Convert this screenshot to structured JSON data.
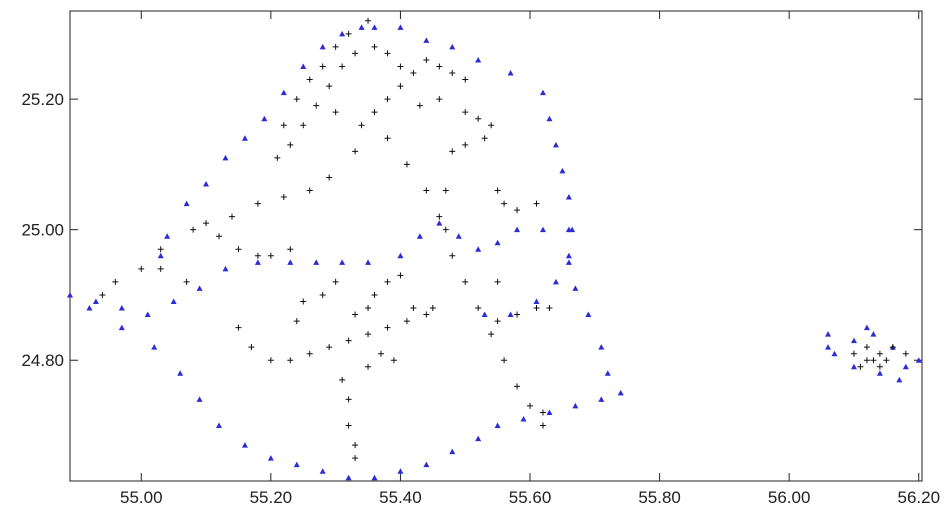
{
  "chart_data": {
    "type": "scatter",
    "title": "",
    "xlabel": "",
    "ylabel": "",
    "xlim": [
      54.89,
      56.205
    ],
    "ylim": [
      24.615,
      25.335
    ],
    "x_ticks": [
      55.0,
      55.2,
      55.4,
      55.6,
      55.8,
      56.0,
      56.2
    ],
    "x_tick_labels": [
      "55.00",
      "55.20",
      "55.40",
      "55.60",
      "55.80",
      "56.00",
      "56.20"
    ],
    "y_ticks": [
      24.8,
      25.0,
      25.2
    ],
    "y_tick_labels": [
      "24.80",
      "25.00",
      "25.20"
    ],
    "grid": false,
    "legend": "none",
    "series": [
      {
        "marker": "triangle",
        "color": "#2b2bd8",
        "description": "boundary points",
        "points": [
          [
            54.89,
            24.9
          ],
          [
            54.93,
            24.89
          ],
          [
            54.97,
            24.88
          ],
          [
            55.01,
            24.87
          ],
          [
            55.05,
            24.89
          ],
          [
            55.09,
            24.91
          ],
          [
            55.13,
            24.94
          ],
          [
            55.18,
            24.95
          ],
          [
            55.23,
            24.95
          ],
          [
            55.27,
            24.95
          ],
          [
            55.31,
            24.95
          ],
          [
            55.35,
            24.95
          ],
          [
            55.4,
            24.96
          ],
          [
            55.43,
            24.99
          ],
          [
            55.46,
            25.01
          ],
          [
            55.49,
            24.99
          ],
          [
            55.52,
            24.97
          ],
          [
            55.55,
            24.98
          ],
          [
            55.58,
            25.0
          ],
          [
            55.62,
            25.0
          ],
          [
            55.66,
            25.0
          ],
          [
            55.03,
            24.96
          ],
          [
            55.04,
            24.99
          ],
          [
            55.07,
            25.04
          ],
          [
            55.1,
            25.07
          ],
          [
            55.13,
            25.11
          ],
          [
            55.16,
            25.14
          ],
          [
            55.19,
            25.17
          ],
          [
            55.22,
            25.21
          ],
          [
            55.25,
            25.25
          ],
          [
            55.28,
            25.28
          ],
          [
            55.31,
            25.3
          ],
          [
            55.34,
            25.31
          ],
          [
            55.36,
            25.31
          ],
          [
            55.4,
            25.31
          ],
          [
            55.44,
            25.29
          ],
          [
            55.48,
            25.28
          ],
          [
            55.52,
            25.26
          ],
          [
            55.57,
            25.24
          ],
          [
            55.62,
            25.21
          ],
          [
            55.63,
            25.17
          ],
          [
            55.64,
            25.13
          ],
          [
            55.65,
            25.09
          ],
          [
            55.66,
            25.05
          ],
          [
            55.665,
            25.0
          ],
          [
            55.66,
            24.96
          ],
          [
            55.64,
            24.92
          ],
          [
            55.61,
            24.89
          ],
          [
            55.57,
            24.87
          ],
          [
            55.53,
            24.87
          ],
          [
            55.66,
            24.95
          ],
          [
            55.67,
            24.91
          ],
          [
            55.69,
            24.87
          ],
          [
            55.71,
            24.82
          ],
          [
            55.72,
            24.78
          ],
          [
            55.74,
            24.75
          ],
          [
            55.71,
            24.74
          ],
          [
            55.67,
            24.73
          ],
          [
            55.63,
            24.72
          ],
          [
            55.59,
            24.71
          ],
          [
            55.55,
            24.7
          ],
          [
            55.52,
            24.68
          ],
          [
            55.48,
            24.66
          ],
          [
            55.44,
            24.64
          ],
          [
            55.4,
            24.63
          ],
          [
            55.36,
            24.62
          ],
          [
            55.32,
            24.62
          ],
          [
            55.28,
            24.63
          ],
          [
            55.24,
            24.64
          ],
          [
            55.2,
            24.65
          ],
          [
            55.16,
            24.67
          ],
          [
            55.12,
            24.7
          ],
          [
            55.09,
            24.74
          ],
          [
            55.06,
            24.78
          ],
          [
            55.02,
            24.82
          ],
          [
            54.97,
            24.85
          ],
          [
            54.92,
            24.88
          ],
          [
            56.06,
            24.84
          ],
          [
            56.1,
            24.83
          ],
          [
            56.13,
            24.84
          ],
          [
            56.16,
            24.82
          ],
          [
            56.2,
            24.8
          ],
          [
            56.18,
            24.79
          ],
          [
            56.14,
            24.78
          ],
          [
            56.1,
            24.79
          ],
          [
            56.07,
            24.81
          ],
          [
            56.06,
            24.82
          ],
          [
            56.12,
            24.85
          ],
          [
            56.17,
            24.77
          ]
        ]
      },
      {
        "marker": "plus",
        "color": "#111111",
        "description": "interior points",
        "points": [
          [
            55.3,
            25.28
          ],
          [
            55.32,
            25.3
          ],
          [
            55.35,
            25.32
          ],
          [
            55.33,
            25.27
          ],
          [
            55.31,
            25.25
          ],
          [
            55.29,
            25.22
          ],
          [
            55.27,
            25.19
          ],
          [
            55.25,
            25.16
          ],
          [
            55.23,
            25.13
          ],
          [
            55.21,
            25.11
          ],
          [
            55.22,
            25.16
          ],
          [
            55.24,
            25.2
          ],
          [
            55.26,
            25.23
          ],
          [
            55.28,
            25.25
          ],
          [
            55.36,
            25.28
          ],
          [
            55.38,
            25.27
          ],
          [
            55.4,
            25.25
          ],
          [
            55.42,
            25.24
          ],
          [
            55.44,
            25.26
          ],
          [
            55.46,
            25.25
          ],
          [
            55.48,
            25.24
          ],
          [
            55.5,
            25.23
          ],
          [
            55.4,
            25.22
          ],
          [
            55.38,
            25.2
          ],
          [
            55.43,
            25.19
          ],
          [
            55.46,
            25.2
          ],
          [
            55.5,
            25.18
          ],
          [
            55.52,
            25.17
          ],
          [
            55.54,
            25.16
          ],
          [
            55.53,
            25.14
          ],
          [
            55.36,
            25.18
          ],
          [
            55.38,
            25.14
          ],
          [
            55.41,
            25.1
          ],
          [
            55.44,
            25.06
          ],
          [
            55.46,
            25.02
          ],
          [
            55.48,
            24.96
          ],
          [
            55.5,
            24.92
          ],
          [
            55.52,
            24.88
          ],
          [
            55.54,
            24.84
          ],
          [
            55.56,
            24.8
          ],
          [
            55.58,
            24.76
          ],
          [
            55.6,
            24.73
          ],
          [
            55.62,
            24.72
          ],
          [
            55.3,
            25.18
          ],
          [
            55.34,
            25.16
          ],
          [
            55.33,
            25.12
          ],
          [
            55.29,
            25.08
          ],
          [
            55.26,
            25.06
          ],
          [
            55.22,
            25.05
          ],
          [
            55.18,
            25.04
          ],
          [
            55.14,
            25.02
          ],
          [
            55.1,
            25.01
          ],
          [
            55.08,
            25.0
          ],
          [
            55.12,
            24.99
          ],
          [
            55.15,
            24.97
          ],
          [
            55.18,
            24.96
          ],
          [
            55.2,
            24.96
          ],
          [
            55.23,
            24.97
          ],
          [
            55.03,
            24.97
          ],
          [
            55.0,
            24.94
          ],
          [
            54.96,
            24.92
          ],
          [
            54.94,
            24.9
          ],
          [
            55.03,
            24.94
          ],
          [
            55.07,
            24.92
          ],
          [
            55.15,
            24.85
          ],
          [
            55.17,
            24.82
          ],
          [
            55.2,
            24.8
          ],
          [
            55.23,
            24.8
          ],
          [
            55.26,
            24.81
          ],
          [
            55.29,
            24.82
          ],
          [
            55.32,
            24.83
          ],
          [
            55.35,
            24.84
          ],
          [
            55.38,
            24.85
          ],
          [
            55.41,
            24.86
          ],
          [
            55.44,
            24.87
          ],
          [
            55.33,
            24.87
          ],
          [
            55.35,
            24.88
          ],
          [
            55.36,
            24.9
          ],
          [
            55.38,
            24.92
          ],
          [
            55.3,
            24.92
          ],
          [
            55.28,
            24.9
          ],
          [
            55.25,
            24.89
          ],
          [
            55.24,
            24.86
          ],
          [
            55.31,
            24.77
          ],
          [
            55.32,
            24.74
          ],
          [
            55.32,
            24.7
          ],
          [
            55.33,
            24.67
          ],
          [
            55.33,
            24.65
          ],
          [
            55.35,
            24.79
          ],
          [
            55.37,
            24.81
          ],
          [
            55.39,
            24.8
          ],
          [
            55.42,
            24.88
          ],
          [
            55.45,
            24.88
          ],
          [
            55.4,
            24.93
          ],
          [
            55.47,
            25.0
          ],
          [
            55.47,
            25.06
          ],
          [
            55.48,
            25.12
          ],
          [
            55.5,
            25.13
          ],
          [
            55.55,
            25.06
          ],
          [
            55.56,
            25.04
          ],
          [
            55.58,
            25.03
          ],
          [
            55.61,
            25.04
          ],
          [
            55.55,
            24.86
          ],
          [
            55.58,
            24.87
          ],
          [
            55.61,
            24.88
          ],
          [
            55.63,
            24.88
          ],
          [
            55.55,
            24.92
          ],
          [
            55.62,
            24.7
          ],
          [
            56.1,
            24.81
          ],
          [
            56.12,
            24.8
          ],
          [
            56.13,
            24.8
          ],
          [
            56.14,
            24.81
          ],
          [
            56.16,
            24.82
          ],
          [
            56.18,
            24.81
          ],
          [
            56.11,
            24.79
          ],
          [
            56.15,
            24.8
          ],
          [
            56.12,
            24.82
          ],
          [
            56.14,
            24.79
          ]
        ]
      }
    ]
  }
}
